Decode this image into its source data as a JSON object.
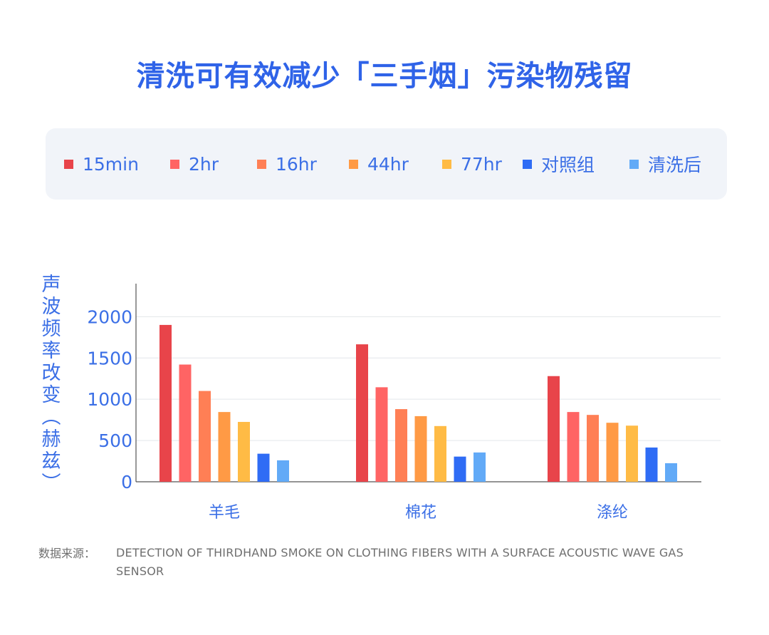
{
  "title": "清洗可有效减少「三手烟」污染物残留",
  "source": {
    "label": "数据来源：",
    "text": "DETECTION OF THIRDHAND SMOKE ON CLOTHING FIBERS WITH A SURFACE ACOUSTIC WAVE GAS SENSOR"
  },
  "colors": {
    "axis_text": "#3b6fe6",
    "title": "#2f63e8"
  },
  "chart_data": {
    "type": "bar",
    "title": "清洗可有效减少「三手烟」污染物残留",
    "ylabel": "声波频率改变（赫兹）",
    "xlabel": "",
    "categories": [
      "羊毛",
      "棉花",
      "涤纶"
    ],
    "ylim": [
      0,
      2400
    ],
    "yticks": [
      "0",
      "500",
      "1000",
      "1500",
      "2000"
    ],
    "grid": true,
    "legend_position": "top",
    "series": [
      {
        "name": "15min",
        "color": "#e8444a",
        "values": [
          1900,
          1665,
          1280
        ]
      },
      {
        "name": "2hr",
        "color": "#ff6464",
        "values": [
          1420,
          1145,
          845
        ]
      },
      {
        "name": "16hr",
        "color": "#ff7f55",
        "values": [
          1100,
          880,
          810
        ]
      },
      {
        "name": "44hr",
        "color": "#ff9a45",
        "values": [
          845,
          795,
          715
        ]
      },
      {
        "name": "77hr",
        "color": "#ffbb45",
        "values": [
          725,
          675,
          680
        ]
      },
      {
        "name": "对照组",
        "color": "#2f6cf5",
        "values": [
          340,
          305,
          415
        ]
      },
      {
        "name": "清洗后",
        "color": "#62aaf7",
        "values": [
          260,
          355,
          225
        ]
      }
    ]
  }
}
